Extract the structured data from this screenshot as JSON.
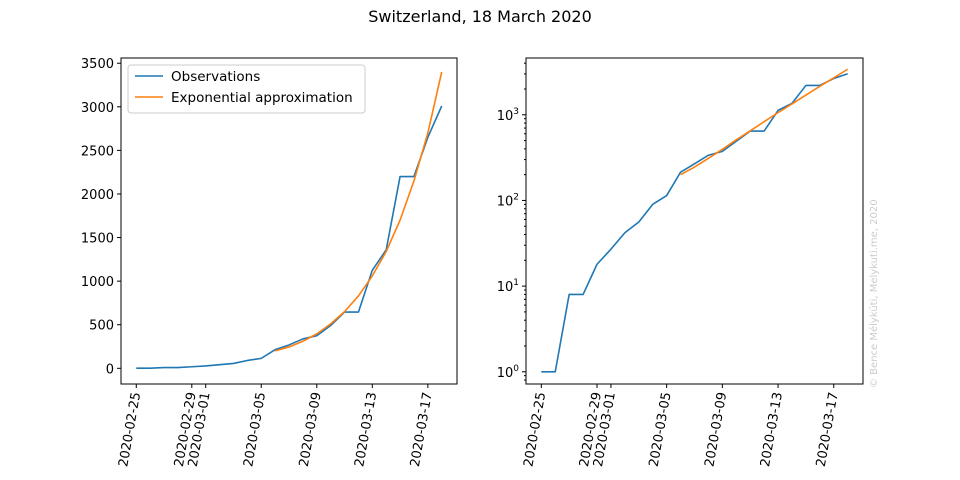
{
  "figure": {
    "title": "Switzerland, 18 March 2020",
    "watermark": "© Bence Mélykúti, Melykuti.me, 2020"
  },
  "colors": {
    "observations": "#1f77b4",
    "approximation": "#ff7f0e"
  },
  "chart_data": [
    {
      "type": "line",
      "panel": "left",
      "yscale": "linear",
      "ylim": [
        -180,
        3560
      ],
      "yticks": [
        0,
        500,
        1000,
        1500,
        2000,
        2500,
        3000,
        3500
      ],
      "ytick_labels": [
        "0",
        "500",
        "1000",
        "1500",
        "2000",
        "2500",
        "3000",
        "3500"
      ],
      "xticks": [
        "2020-02-25",
        "2020-02-29",
        "2020-03-01",
        "2020-03-05",
        "2020-03-09",
        "2020-03-13",
        "2020-03-17"
      ],
      "legend": {
        "position": "upper left",
        "entries": [
          "Observations",
          "Exponential approximation"
        ]
      },
      "series": [
        {
          "name": "Observations",
          "x": [
            "2020-02-25",
            "2020-02-26",
            "2020-02-27",
            "2020-02-28",
            "2020-02-29",
            "2020-03-01",
            "2020-03-02",
            "2020-03-03",
            "2020-03-04",
            "2020-03-05",
            "2020-03-06",
            "2020-03-07",
            "2020-03-08",
            "2020-03-09",
            "2020-03-10",
            "2020-03-11",
            "2020-03-12",
            "2020-03-13",
            "2020-03-14",
            "2020-03-15",
            "2020-03-16",
            "2020-03-17",
            "2020-03-18"
          ],
          "y": [
            1,
            1,
            8,
            8,
            18,
            27,
            42,
            56,
            90,
            114,
            214,
            268,
            337,
            374,
            491,
            645,
            645,
            1125,
            1359,
            2200,
            2200,
            2650,
            3010
          ]
        },
        {
          "name": "Exponential approximation",
          "x": [
            "2020-03-06",
            "2020-03-07",
            "2020-03-08",
            "2020-03-09",
            "2020-03-10",
            "2020-03-11",
            "2020-03-12",
            "2020-03-13",
            "2020-03-14",
            "2020-03-15",
            "2020-03-16",
            "2020-03-17",
            "2020-03-18"
          ],
          "y": [
            200,
            245,
            310,
            395,
            510,
            650,
            830,
            1060,
            1340,
            1700,
            2150,
            2700,
            3400
          ]
        }
      ]
    },
    {
      "type": "line",
      "panel": "right",
      "yscale": "log",
      "ylim": [
        0.72,
        4600
      ],
      "yticks": [
        1,
        10,
        100,
        1000
      ],
      "ytick_labels": [
        "10^0",
        "10^1",
        "10^2",
        "10^3"
      ],
      "xticks": [
        "2020-02-25",
        "2020-02-29",
        "2020-03-01",
        "2020-03-05",
        "2020-03-09",
        "2020-03-13",
        "2020-03-17"
      ],
      "series": [
        {
          "name": "Observations",
          "x": [
            "2020-02-25",
            "2020-02-26",
            "2020-02-27",
            "2020-02-28",
            "2020-02-29",
            "2020-03-01",
            "2020-03-02",
            "2020-03-03",
            "2020-03-04",
            "2020-03-05",
            "2020-03-06",
            "2020-03-07",
            "2020-03-08",
            "2020-03-09",
            "2020-03-10",
            "2020-03-11",
            "2020-03-12",
            "2020-03-13",
            "2020-03-14",
            "2020-03-15",
            "2020-03-16",
            "2020-03-17",
            "2020-03-18"
          ],
          "y": [
            1,
            1,
            8,
            8,
            18,
            27,
            42,
            56,
            90,
            114,
            214,
            268,
            337,
            374,
            491,
            645,
            645,
            1125,
            1359,
            2200,
            2200,
            2650,
            3010
          ]
        },
        {
          "name": "Exponential approximation",
          "x": [
            "2020-03-06",
            "2020-03-07",
            "2020-03-08",
            "2020-03-09",
            "2020-03-10",
            "2020-03-11",
            "2020-03-12",
            "2020-03-13",
            "2020-03-14",
            "2020-03-15",
            "2020-03-16",
            "2020-03-17",
            "2020-03-18"
          ],
          "y": [
            200,
            245,
            310,
            395,
            510,
            650,
            830,
            1060,
            1340,
            1700,
            2150,
            2700,
            3400
          ]
        }
      ]
    }
  ]
}
